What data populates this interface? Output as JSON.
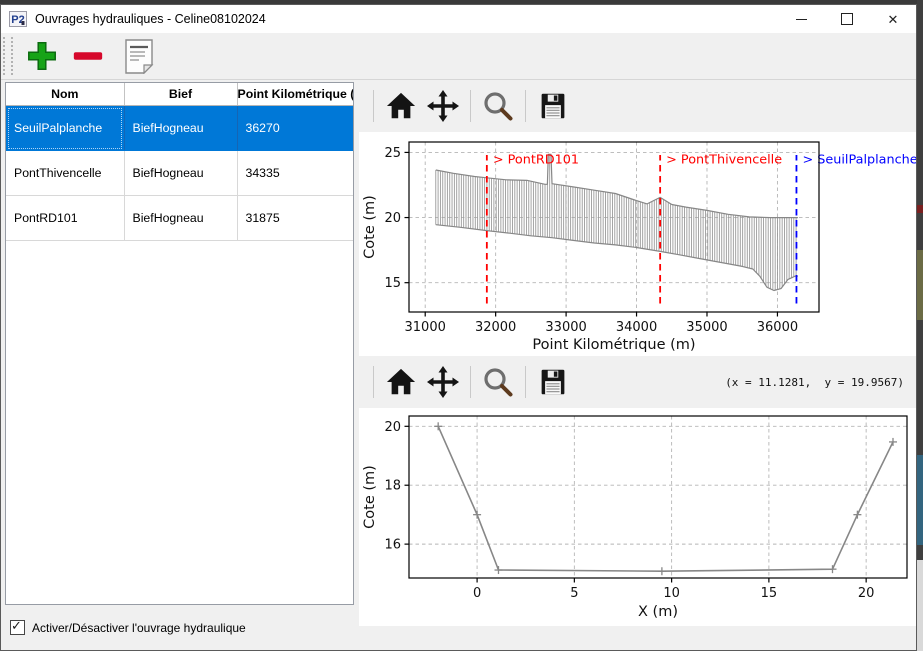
{
  "window": {
    "title": "Ouvrages hydrauliques - Celine08102024",
    "icon_text": "P2",
    "close_glyph": "✕"
  },
  "toolbar": {
    "buttons": [
      {
        "name": "add",
        "icon": "plus-icon"
      },
      {
        "name": "remove",
        "icon": "minus-icon"
      },
      {
        "name": "notes",
        "icon": "notes-icon"
      }
    ]
  },
  "table": {
    "columns": [
      "Nom",
      "Bief",
      "Point Kilométrique (m)"
    ],
    "rows": [
      [
        "SeuilPalplanche",
        "BiefHogneau",
        "36270"
      ],
      [
        "PontThivencelle",
        "BiefHogneau",
        "34335"
      ],
      [
        "PontRD101",
        "BiefHogneau",
        "31875"
      ]
    ],
    "selected_index": 0
  },
  "footer": {
    "checkbox_label": "Activer/Désactiver l'ouvrage hydraulique",
    "checked": true,
    "checkmark_glyph": "✓"
  },
  "nav_toolbar": {
    "icons": [
      "home-icon",
      "pan-icon",
      "zoom-icon",
      "save-icon"
    ],
    "coords_readout": "(x = 11.1281,  y = 19.9567)"
  },
  "colors": {
    "selection_blue": "#0078d7",
    "marker_red": "#ff0000",
    "marker_blue": "#0000ff",
    "profile_gray": "#8f8f8f",
    "line_gray": "#878787",
    "grid_gray": "#b5b5b5",
    "add_green": "#17a317",
    "remove_red": "#d6082b"
  },
  "chart_data": [
    {
      "type": "area",
      "title": "",
      "xlabel": "Point Kilométrique (m)",
      "ylabel": "Cote (m)",
      "xlim": [
        30770,
        36590
      ],
      "ylim": [
        12.75,
        25.8
      ],
      "xticks": [
        31000,
        32000,
        33000,
        34000,
        35000,
        36000
      ],
      "yticks": [
        15,
        20,
        25
      ],
      "grid": true,
      "hatch_step_m": 33,
      "series": [
        {
          "name": "crest_profile",
          "points": [
            [
              31150,
              23.65
            ],
            [
              31400,
              23.4
            ],
            [
              31700,
              23.15
            ],
            [
              31875,
              23.05
            ],
            [
              32150,
              22.9
            ],
            [
              32450,
              22.85
            ],
            [
              32700,
              22.55
            ],
            [
              32735,
              22.55
            ],
            [
              32748,
              24.85
            ],
            [
              32786,
              24.85
            ],
            [
              32800,
              22.6
            ],
            [
              33100,
              22.35
            ],
            [
              33400,
              22.1
            ],
            [
              33700,
              21.85
            ],
            [
              34000,
              21.3
            ],
            [
              34150,
              21.05
            ],
            [
              34335,
              21.55
            ],
            [
              34500,
              21.0
            ],
            [
              34700,
              20.8
            ],
            [
              35000,
              20.55
            ],
            [
              35300,
              20.25
            ],
            [
              35600,
              20.05
            ],
            [
              35900,
              20.0
            ],
            [
              36290,
              20.0
            ]
          ]
        },
        {
          "name": "bed_profile",
          "points": [
            [
              31150,
              19.45
            ],
            [
              31500,
              19.25
            ],
            [
              31875,
              19.0
            ],
            [
              32200,
              18.8
            ],
            [
              32500,
              18.6
            ],
            [
              32800,
              18.45
            ],
            [
              33100,
              18.25
            ],
            [
              33400,
              18.05
            ],
            [
              33700,
              17.9
            ],
            [
              34000,
              17.7
            ],
            [
              34335,
              17.4
            ],
            [
              34600,
              17.15
            ],
            [
              34900,
              16.85
            ],
            [
              35200,
              16.55
            ],
            [
              35500,
              16.25
            ],
            [
              35650,
              16.05
            ],
            [
              35750,
              15.5
            ],
            [
              35850,
              14.65
            ],
            [
              35950,
              14.4
            ],
            [
              36050,
              14.55
            ],
            [
              36150,
              15.25
            ],
            [
              36250,
              15.5
            ],
            [
              36290,
              15.5
            ]
          ]
        }
      ],
      "vlines": [
        {
          "x": 31875,
          "label": "> PontRD101",
          "color": "#ff0000"
        },
        {
          "x": 34335,
          "label": "> PontThivencelle",
          "color": "#ff0000"
        },
        {
          "x": 36270,
          "label": "> SeuilPalplanche",
          "color": "#0000ff"
        }
      ],
      "vline_span": [
        13.4,
        24.8
      ],
      "vline_label_y": 24.15
    },
    {
      "type": "line",
      "title": "",
      "xlabel": "X (m)",
      "ylabel": "Cote (m)",
      "xlim": [
        -3.5,
        22.1
      ],
      "ylim": [
        14.85,
        20.35
      ],
      "xticks": [
        0,
        5,
        10,
        15,
        20
      ],
      "yticks": [
        16,
        18,
        20
      ],
      "grid": true,
      "series": [
        {
          "name": "cross_section",
          "marker": "+",
          "points": [
            [
              -2.0,
              20.0
            ],
            [
              0.0,
              17.0
            ],
            [
              1.1,
              15.12
            ],
            [
              9.5,
              15.08
            ],
            [
              18.27,
              15.15
            ],
            [
              19.55,
              17.0
            ],
            [
              21.38,
              19.47
            ]
          ]
        }
      ]
    }
  ]
}
